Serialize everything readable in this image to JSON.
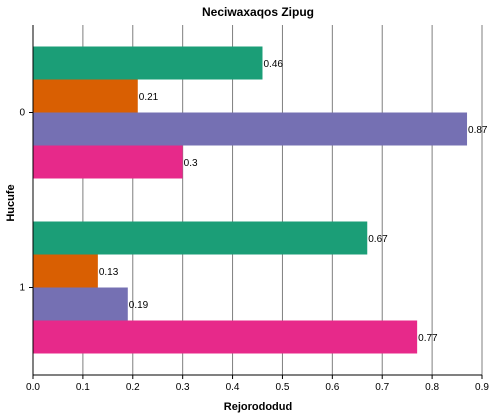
{
  "chart_data": {
    "type": "bar",
    "orientation": "horizontal",
    "title": "Neciwaxaqos Zipug",
    "xlabel": "Rejorododud",
    "ylabel": "Hucufe",
    "categories": [
      "0",
      "1"
    ],
    "series": [
      {
        "color": "#1b9e77",
        "values": [
          0.46,
          0.67
        ]
      },
      {
        "color": "#d95f02",
        "values": [
          0.21,
          0.13
        ]
      },
      {
        "color": "#7570b3",
        "values": [
          0.87,
          0.19
        ]
      },
      {
        "color": "#e7298a",
        "values": [
          0.3,
          0.77
        ]
      }
    ],
    "xlim": [
      0,
      0.9
    ],
    "xticks": [
      "0.0",
      "0.1",
      "0.2",
      "0.3",
      "0.4",
      "0.5",
      "0.6",
      "0.7",
      "0.8",
      "0.9"
    ],
    "grid": true,
    "legend": "none"
  }
}
